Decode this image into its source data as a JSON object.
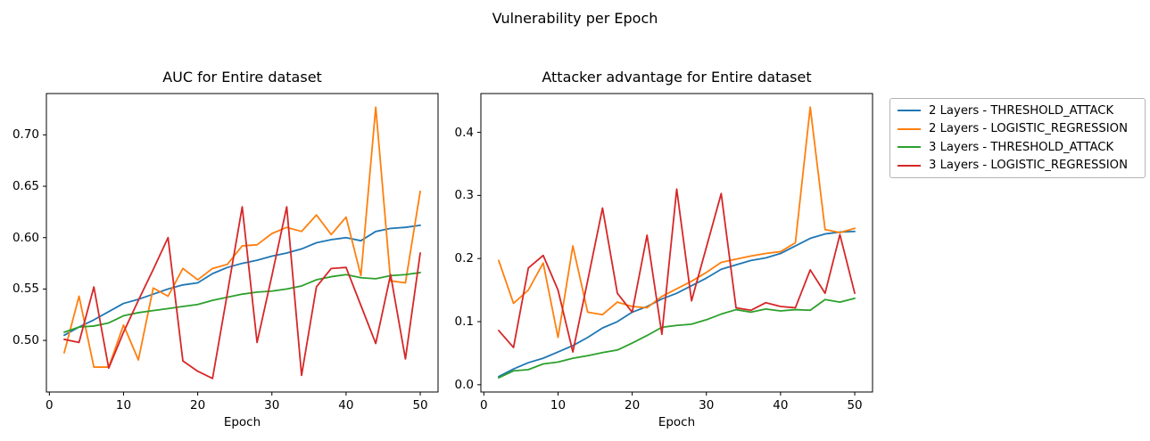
{
  "figure_title": "Vulnerability per Epoch",
  "colors": {
    "blue": "#1f77b4",
    "orange": "#ff7f0e",
    "green": "#2ca02c",
    "red": "#d62728",
    "spine": "#000000",
    "legend_border": "#b3b3b3",
    "background": "#ffffff"
  },
  "legend": {
    "position": "outside-right",
    "items": [
      {
        "label": "2 Layers - THRESHOLD_ATTACK",
        "color": "#1f77b4"
      },
      {
        "label": "2 Layers - LOGISTIC_REGRESSION",
        "color": "#ff7f0e"
      },
      {
        "label": "3 Layers - THRESHOLD_ATTACK",
        "color": "#2ca02c"
      },
      {
        "label": "3 Layers - LOGISTIC_REGRESSION",
        "color": "#d62728"
      }
    ]
  },
  "chart_data": [
    {
      "type": "line",
      "title": "AUC for Entire dataset",
      "xlabel": "Epoch",
      "ylabel": "",
      "grid": false,
      "x": [
        2,
        4,
        6,
        8,
        10,
        12,
        14,
        16,
        18,
        20,
        22,
        24,
        26,
        28,
        30,
        32,
        34,
        36,
        38,
        40,
        42,
        44,
        46,
        48,
        50
      ],
      "xlim": [
        -0.4,
        52.4
      ],
      "ylim": [
        0.4498,
        0.7402
      ],
      "xticks": {
        "values": [
          0,
          10,
          20,
          30,
          40,
          50
        ],
        "labels": [
          "0",
          "10",
          "20",
          "30",
          "40",
          "50"
        ]
      },
      "yticks": {
        "values": [
          0.5,
          0.55,
          0.6,
          0.65,
          0.7
        ],
        "labels": [
          "0.50",
          "0.55",
          "0.60",
          "0.65",
          "0.70"
        ]
      },
      "series": [
        {
          "name": "2 Layers - THRESHOLD_ATTACK",
          "color": "#1f77b4",
          "values": [
            0.505,
            0.513,
            0.52,
            0.528,
            0.536,
            0.54,
            0.545,
            0.55,
            0.554,
            0.556,
            0.565,
            0.571,
            0.575,
            0.578,
            0.582,
            0.585,
            0.589,
            0.595,
            0.598,
            0.6,
            0.597,
            0.606,
            0.609,
            0.61,
            0.612
          ]
        },
        {
          "name": "2 Layers - LOGISTIC_REGRESSION",
          "color": "#ff7f0e",
          "values": [
            0.488,
            0.543,
            0.474,
            0.474,
            0.515,
            0.481,
            0.551,
            0.543,
            0.57,
            0.559,
            0.57,
            0.574,
            0.592,
            0.593,
            0.604,
            0.61,
            0.606,
            0.622,
            0.603,
            0.62,
            0.563,
            0.727,
            0.558,
            0.556,
            0.645
          ]
        },
        {
          "name": "3 Layers - THRESHOLD_ATTACK",
          "color": "#2ca02c",
          "values": [
            0.508,
            0.513,
            0.514,
            0.517,
            0.524,
            0.527,
            0.529,
            0.531,
            0.533,
            0.535,
            0.539,
            0.542,
            0.545,
            0.547,
            0.548,
            0.55,
            0.553,
            0.559,
            0.562,
            0.564,
            0.561,
            0.56,
            0.563,
            0.564,
            0.566
          ]
        },
        {
          "name": "3 Layers - LOGISTIC_REGRESSION",
          "color": "#d62728",
          "values": [
            0.501,
            0.498,
            0.552,
            0.473,
            0.508,
            0.539,
            0.569,
            0.6,
            0.48,
            0.47,
            0.463,
            0.546,
            0.63,
            0.498,
            0.563,
            0.63,
            0.466,
            0.552,
            0.57,
            0.571,
            0.534,
            0.497,
            0.564,
            0.482,
            0.585
          ]
        }
      ]
    },
    {
      "type": "line",
      "title": "Attacker advantage for Entire dataset",
      "xlabel": "Epoch",
      "ylabel": "",
      "grid": false,
      "x": [
        2,
        4,
        6,
        8,
        10,
        12,
        14,
        16,
        18,
        20,
        22,
        24,
        26,
        28,
        30,
        32,
        34,
        36,
        38,
        40,
        42,
        44,
        46,
        48,
        50
      ],
      "xlim": [
        -0.4,
        52.4
      ],
      "ylim": [
        -0.0115,
        0.4615
      ],
      "xticks": {
        "values": [
          0,
          10,
          20,
          30,
          40,
          50
        ],
        "labels": [
          "0",
          "10",
          "20",
          "30",
          "40",
          "50"
        ]
      },
      "yticks": {
        "values": [
          0.0,
          0.1,
          0.2,
          0.3,
          0.4
        ],
        "labels": [
          "0.0",
          "0.1",
          "0.2",
          "0.3",
          "0.4"
        ]
      },
      "series": [
        {
          "name": "2 Layers - THRESHOLD_ATTACK",
          "color": "#1f77b4",
          "values": [
            0.013,
            0.025,
            0.035,
            0.042,
            0.052,
            0.062,
            0.075,
            0.09,
            0.1,
            0.115,
            0.124,
            0.136,
            0.145,
            0.157,
            0.169,
            0.183,
            0.19,
            0.197,
            0.201,
            0.208,
            0.22,
            0.232,
            0.239,
            0.242,
            0.243
          ]
        },
        {
          "name": "2 Layers - LOGISTIC_REGRESSION",
          "color": "#ff7f0e",
          "values": [
            0.197,
            0.129,
            0.15,
            0.193,
            0.075,
            0.22,
            0.115,
            0.111,
            0.131,
            0.124,
            0.122,
            0.14,
            0.152,
            0.164,
            0.178,
            0.194,
            0.199,
            0.204,
            0.208,
            0.211,
            0.225,
            0.44,
            0.246,
            0.241,
            0.248
          ]
        },
        {
          "name": "3 Layers - THRESHOLD_ATTACK",
          "color": "#2ca02c",
          "values": [
            0.011,
            0.022,
            0.024,
            0.033,
            0.036,
            0.042,
            0.046,
            0.051,
            0.055,
            0.066,
            0.078,
            0.091,
            0.094,
            0.096,
            0.103,
            0.112,
            0.119,
            0.115,
            0.12,
            0.117,
            0.119,
            0.118,
            0.135,
            0.131,
            0.137
          ]
        },
        {
          "name": "3 Layers - LOGISTIC_REGRESSION",
          "color": "#d62728",
          "values": [
            0.086,
            0.059,
            0.185,
            0.205,
            0.15,
            0.052,
            0.165,
            0.28,
            0.145,
            0.115,
            0.237,
            0.08,
            0.31,
            0.133,
            0.218,
            0.303,
            0.122,
            0.118,
            0.13,
            0.124,
            0.122,
            0.182,
            0.145,
            0.238,
            0.145
          ]
        }
      ]
    }
  ]
}
